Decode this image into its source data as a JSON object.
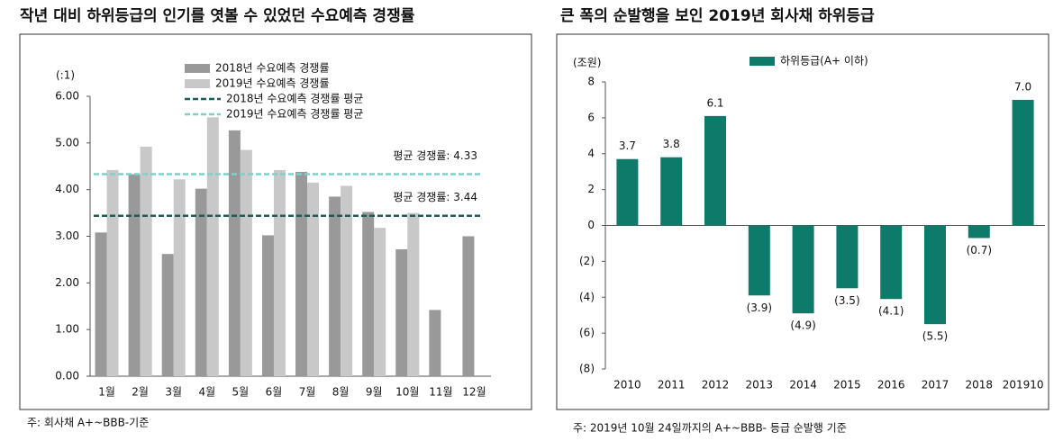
{
  "chart_data": [
    {
      "type": "bar",
      "title": "작년 대비 하위등급의 인기를 엿볼 수 있었던 수요예측 경쟁률",
      "unit": "(:1)",
      "note": "주: 회사채 A+~BBB-기준",
      "categories": [
        "1월",
        "2월",
        "3월",
        "4월",
        "5월",
        "6월",
        "7월",
        "8월",
        "9월",
        "10월",
        "11월",
        "12월"
      ],
      "series": [
        {
          "name": "2018년 수요예측 경쟁률",
          "color": "#999999",
          "values": [
            3.08,
            4.33,
            2.62,
            4.02,
            5.27,
            3.02,
            4.38,
            3.85,
            3.52,
            2.72,
            1.42,
            3.0
          ]
        },
        {
          "name": "2019년 수요예측 경쟁률",
          "color": "#c8c8c8",
          "values": [
            4.42,
            4.92,
            4.22,
            5.55,
            4.85,
            4.42,
            4.15,
            4.08,
            3.18,
            3.5,
            null,
            null
          ]
        }
      ],
      "reference_lines": [
        {
          "name": "2018년 수요예측 경쟁률 평균",
          "color": "#1b5c58",
          "value": 3.44,
          "label": "평균 경쟁률: 3.44"
        },
        {
          "name": "2019년 수요예측 경쟁률 평균",
          "color": "#7fd0c6",
          "value": 4.33,
          "label": "평균 경쟁률: 4.33"
        }
      ],
      "ylim": [
        0,
        6
      ],
      "yticks": [
        {
          "value": 0,
          "label": "0.00"
        },
        {
          "value": 1,
          "label": "1.00"
        },
        {
          "value": 2,
          "label": "2.00"
        },
        {
          "value": 3,
          "label": "3.00"
        },
        {
          "value": 4,
          "label": "4.00"
        },
        {
          "value": 5,
          "label": "5.00"
        },
        {
          "value": 6,
          "label": "6.00"
        }
      ],
      "grid": false
    },
    {
      "type": "bar",
      "title": "큰 폭의 순발행을 보인 2019년 회사채 하위등급",
      "unit": "(조원)",
      "note": "주: 2019년 10월 24일까지의 A+~BBB- 등급 순발행 기준",
      "categories": [
        "2010",
        "2011",
        "2012",
        "2013",
        "2014",
        "2015",
        "2016",
        "2017",
        "2018",
        "201910"
      ],
      "series": [
        {
          "name": "하위등급(A+ 이하)",
          "color": "#0e7a6a",
          "values": [
            3.7,
            3.8,
            6.1,
            -3.9,
            -4.9,
            -3.5,
            -4.1,
            -5.5,
            -0.7,
            7.0
          ],
          "value_labels": [
            "3.7",
            "3.8",
            "6.1",
            "(3.9)",
            "(4.9)",
            "(3.5)",
            "(4.1)",
            "(5.5)",
            "(0.7)",
            "7.0"
          ]
        }
      ],
      "ylim": [
        -8,
        8
      ],
      "yticks": [
        {
          "value": -8,
          "label": "(8)"
        },
        {
          "value": -6,
          "label": "(6)"
        },
        {
          "value": -4,
          "label": "(4)"
        },
        {
          "value": -2,
          "label": "(2)"
        },
        0,
        2,
        4,
        6,
        8
      ],
      "grid": false
    }
  ]
}
